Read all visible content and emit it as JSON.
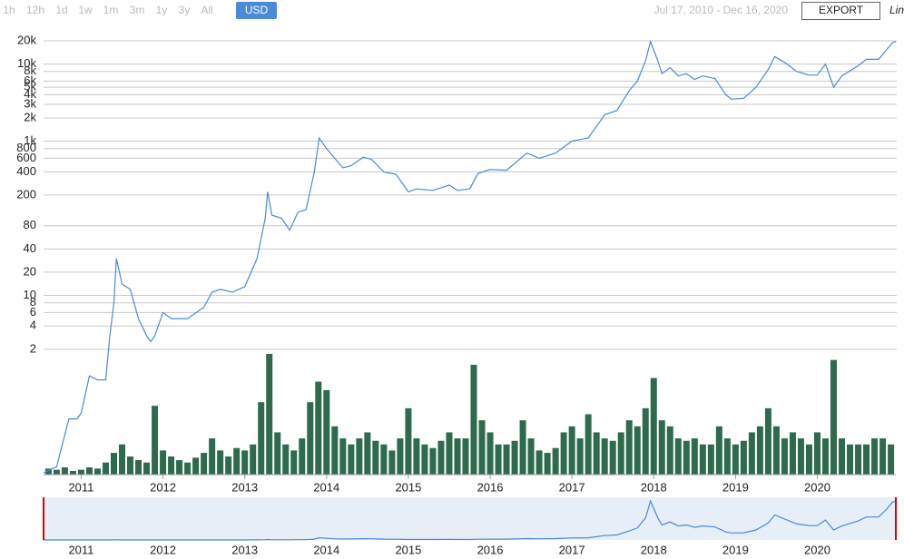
{
  "toolbar": {
    "ranges": [
      "1h",
      "12h",
      "1d",
      "1w",
      "1m",
      "3m",
      "1y",
      "3y",
      "All"
    ],
    "currency": "USD",
    "date_range": "Jul 17, 2010 - Dec 16, 2020",
    "export": "EXPORT",
    "scale": "Lin"
  },
  "chart_data": {
    "type": "line",
    "log_y": true,
    "grid": true,
    "xlim": [
      2010.54,
      2020.96
    ],
    "xticks": [
      2011,
      2012,
      2013,
      2014,
      2015,
      2016,
      2017,
      2018,
      2019,
      2020
    ],
    "ylim": [
      0.05,
      20000
    ],
    "yticks": [
      {
        "value": 20000,
        "label": "20k"
      },
      {
        "value": 10000,
        "label": "10k"
      },
      {
        "value": 8000,
        "label": "8k"
      },
      {
        "value": 6000,
        "label": "6k"
      },
      {
        "value": 5000,
        "label": "5k"
      },
      {
        "value": 4000,
        "label": "4k"
      },
      {
        "value": 3000,
        "label": "3k"
      },
      {
        "value": 2000,
        "label": "2k"
      },
      {
        "value": 1000,
        "label": "1k"
      },
      800,
      600,
      400,
      200,
      80,
      40,
      20,
      10,
      8,
      6,
      4,
      2
    ],
    "series": [
      {
        "color": "#4a8ad8",
        "x": [
          2010.54,
          2010.7,
          2010.85,
          2010.95,
          2011.0,
          2011.1,
          2011.2,
          2011.3,
          2011.35,
          2011.4,
          2011.43,
          2011.5,
          2011.6,
          2011.7,
          2011.8,
          2011.85,
          2011.9,
          2012.0,
          2012.1,
          2012.3,
          2012.5,
          2012.6,
          2012.7,
          2012.85,
          2013.0,
          2013.15,
          2013.25,
          2013.28,
          2013.33,
          2013.45,
          2013.55,
          2013.65,
          2013.75,
          2013.85,
          2013.91,
          2014.0,
          2014.1,
          2014.2,
          2014.3,
          2014.45,
          2014.55,
          2014.7,
          2014.85,
          2015.0,
          2015.1,
          2015.3,
          2015.5,
          2015.6,
          2015.75,
          2015.85,
          2016.0,
          2016.2,
          2016.45,
          2016.6,
          2016.8,
          2017.0,
          2017.2,
          2017.4,
          2017.55,
          2017.7,
          2017.8,
          2017.9,
          2017.96,
          2018.05,
          2018.1,
          2018.2,
          2018.3,
          2018.4,
          2018.5,
          2018.6,
          2018.75,
          2018.88,
          2018.95,
          2019.1,
          2019.25,
          2019.4,
          2019.48,
          2019.6,
          2019.75,
          2019.9,
          2020.0,
          2020.1,
          2020.2,
          2020.3,
          2020.5,
          2020.6,
          2020.75,
          2020.85,
          2020.92,
          2020.96
        ],
        "values": [
          0.05,
          0.06,
          0.25,
          0.25,
          0.3,
          0.9,
          0.8,
          0.8,
          3,
          8,
          30,
          14,
          12,
          5,
          3,
          2.5,
          3,
          6,
          5,
          5,
          7,
          11,
          12,
          11,
          13,
          30,
          100,
          220,
          110,
          100,
          70,
          120,
          130,
          400,
          1100,
          800,
          600,
          450,
          480,
          620,
          580,
          400,
          370,
          220,
          240,
          230,
          270,
          230,
          240,
          380,
          430,
          420,
          700,
          600,
          700,
          1000,
          1100,
          2200,
          2500,
          4500,
          6000,
          11000,
          19500,
          11000,
          7500,
          9000,
          7000,
          7500,
          6300,
          7000,
          6500,
          4000,
          3500,
          3600,
          5000,
          8500,
          12500,
          10500,
          8000,
          7200,
          7200,
          10000,
          5000,
          7000,
          9500,
          11500,
          11500,
          15500,
          19000,
          19500
        ]
      }
    ],
    "volume": {
      "color": "#2e6a4e",
      "x": [
        2010.6,
        2010.7,
        2010.8,
        2010.9,
        2011.0,
        2011.1,
        2011.2,
        2011.3,
        2011.4,
        2011.5,
        2011.6,
        2011.7,
        2011.8,
        2011.9,
        2012.0,
        2012.1,
        2012.2,
        2012.3,
        2012.4,
        2012.5,
        2012.6,
        2012.7,
        2012.8,
        2012.9,
        2013.0,
        2013.1,
        2013.2,
        2013.3,
        2013.4,
        2013.5,
        2013.6,
        2013.7,
        2013.8,
        2013.9,
        2014.0,
        2014.1,
        2014.2,
        2014.3,
        2014.4,
        2014.5,
        2014.6,
        2014.7,
        2014.8,
        2014.9,
        2015.0,
        2015.1,
        2015.2,
        2015.3,
        2015.4,
        2015.5,
        2015.6,
        2015.7,
        2015.8,
        2015.9,
        2016.0,
        2016.1,
        2016.2,
        2016.3,
        2016.4,
        2016.5,
        2016.6,
        2016.7,
        2016.8,
        2016.9,
        2017.0,
        2017.1,
        2017.2,
        2017.3,
        2017.4,
        2017.5,
        2017.6,
        2017.7,
        2017.8,
        2017.9,
        2018.0,
        2018.1,
        2018.2,
        2018.3,
        2018.4,
        2018.5,
        2018.6,
        2018.7,
        2018.8,
        2018.9,
        2019.0,
        2019.1,
        2019.2,
        2019.3,
        2019.4,
        2019.5,
        2019.6,
        2019.7,
        2019.8,
        2019.9,
        2020.0,
        2020.1,
        2020.2,
        2020.3,
        2020.4,
        2020.5,
        2020.6,
        2020.7,
        2020.8,
        2020.9
      ],
      "values": [
        5,
        4,
        6,
        3,
        4,
        6,
        5,
        10,
        18,
        25,
        15,
        12,
        10,
        57,
        20,
        15,
        12,
        10,
        14,
        18,
        30,
        20,
        15,
        22,
        20,
        25,
        60,
        100,
        35,
        25,
        20,
        30,
        60,
        77,
        70,
        40,
        30,
        25,
        30,
        35,
        28,
        25,
        20,
        30,
        55,
        30,
        25,
        22,
        28,
        35,
        30,
        30,
        91,
        45,
        35,
        25,
        25,
        28,
        45,
        30,
        20,
        18,
        22,
        35,
        40,
        30,
        50,
        35,
        30,
        28,
        35,
        45,
        40,
        55,
        80,
        45,
        40,
        30,
        28,
        30,
        25,
        25,
        40,
        30,
        25,
        28,
        35,
        40,
        55,
        40,
        30,
        35,
        30,
        25,
        35,
        30,
        95,
        30,
        25,
        25,
        25,
        30,
        30,
        25
      ]
    }
  }
}
